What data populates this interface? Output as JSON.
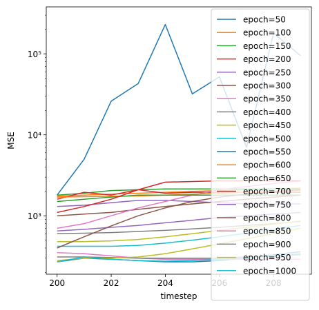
{
  "chart_data": {
    "type": "line",
    "xlabel": "timestep",
    "ylabel": "MSE",
    "yscale": "log",
    "xlim": [
      199.6,
      209.4
    ],
    "ylim": [
      190,
      380000
    ],
    "x": [
      200,
      201,
      202,
      203,
      204,
      205,
      206,
      207,
      208,
      209
    ],
    "x_ticks": [
      200,
      202,
      204,
      206,
      208
    ],
    "x_tick_labels": [
      "200",
      "202",
      "204",
      "206",
      "208"
    ],
    "y_ticks": [
      1000,
      10000,
      100000
    ],
    "y_tick_labels": [
      "10³",
      "10⁴",
      "10⁵"
    ],
    "legend_position": "upper right",
    "series": [
      {
        "name": "epoch=50",
        "color": "#1f77b4",
        "values": [
          1800,
          5000,
          26000,
          43000,
          230000,
          32000,
          52000,
          7000,
          180000,
          95000
        ]
      },
      {
        "name": "epoch=100",
        "color": "#ff7f0e",
        "values": [
          1750,
          1800,
          1850,
          1900,
          1950,
          2000,
          2050,
          2100,
          2150,
          2200
        ]
      },
      {
        "name": "epoch=150",
        "color": "#2ca02c",
        "values": [
          1800,
          1900,
          2050,
          2100,
          2150,
          2150,
          2150,
          2150,
          2150,
          2150
        ]
      },
      {
        "name": "epoch=200",
        "color": "#d62728",
        "values": [
          1600,
          1950,
          1800,
          2100,
          1900,
          1950,
          1950,
          1950,
          1950,
          1950
        ]
      },
      {
        "name": "epoch=250",
        "color": "#9467bd",
        "values": [
          1300,
          1350,
          1450,
          1550,
          1550,
          1500,
          1450,
          1400,
          1400,
          1400
        ]
      },
      {
        "name": "epoch=300",
        "color": "#8c564b",
        "values": [
          1000,
          1050,
          1100,
          1200,
          1300,
          1400,
          1500,
          1600,
          1700,
          1800
        ]
      },
      {
        "name": "epoch=350",
        "color": "#e377c2",
        "values": [
          700,
          800,
          1000,
          1250,
          1500,
          1800,
          2100,
          2300,
          2500,
          2700
        ]
      },
      {
        "name": "epoch=400",
        "color": "#7f7f7f",
        "values": [
          600,
          610,
          620,
          640,
          660,
          690,
          720,
          760,
          800,
          850
        ]
      },
      {
        "name": "epoch=450",
        "color": "#bcbd22",
        "values": [
          480,
          480,
          490,
          510,
          550,
          600,
          660,
          720,
          790,
          860
        ]
      },
      {
        "name": "epoch=500",
        "color": "#17becf",
        "values": [
          420,
          420,
          420,
          430,
          460,
          500,
          550,
          610,
          680,
          760
        ]
      },
      {
        "name": "epoch=550",
        "color": "#1f77b4",
        "values": [
          270,
          300,
          290,
          280,
          270,
          270,
          280,
          300,
          330,
          360
        ]
      },
      {
        "name": "epoch=600",
        "color": "#ff7f0e",
        "values": [
          1700,
          1720,
          1740,
          1760,
          1800,
          1850,
          1900,
          1950,
          2000,
          2050
        ]
      },
      {
        "name": "epoch=650",
        "color": "#2ca02c",
        "values": [
          1500,
          1600,
          1700,
          1800,
          1800,
          1800,
          1800,
          1800,
          1800,
          1800
        ]
      },
      {
        "name": "epoch=700",
        "color": "#d62728",
        "values": [
          1100,
          1300,
          1600,
          2100,
          2600,
          2650,
          2700,
          2700,
          2700,
          2700
        ]
      },
      {
        "name": "epoch=750",
        "color": "#9467bd",
        "values": [
          650,
          680,
          720,
          760,
          820,
          880,
          950,
          1000,
          1050,
          1100
        ]
      },
      {
        "name": "epoch=800",
        "color": "#8c564b",
        "values": [
          400,
          550,
          750,
          1000,
          1250,
          1500,
          1700,
          1850,
          2000,
          2100
        ]
      },
      {
        "name": "epoch=850",
        "color": "#e377c2",
        "values": [
          350,
          340,
          320,
          300,
          290,
          290,
          290,
          290,
          290,
          290
        ]
      },
      {
        "name": "epoch=900",
        "color": "#7f7f7f",
        "values": [
          310,
          310,
          305,
          300,
          300,
          300,
          300,
          310,
          320,
          330
        ]
      },
      {
        "name": "epoch=950",
        "color": "#bcbd22",
        "values": [
          280,
          300,
          300,
          310,
          340,
          390,
          450,
          520,
          600,
          700
        ]
      },
      {
        "name": "epoch=1000",
        "color": "#17becf",
        "values": [
          270,
          310,
          290,
          280,
          275,
          280,
          290,
          300,
          320,
          340
        ]
      }
    ]
  }
}
